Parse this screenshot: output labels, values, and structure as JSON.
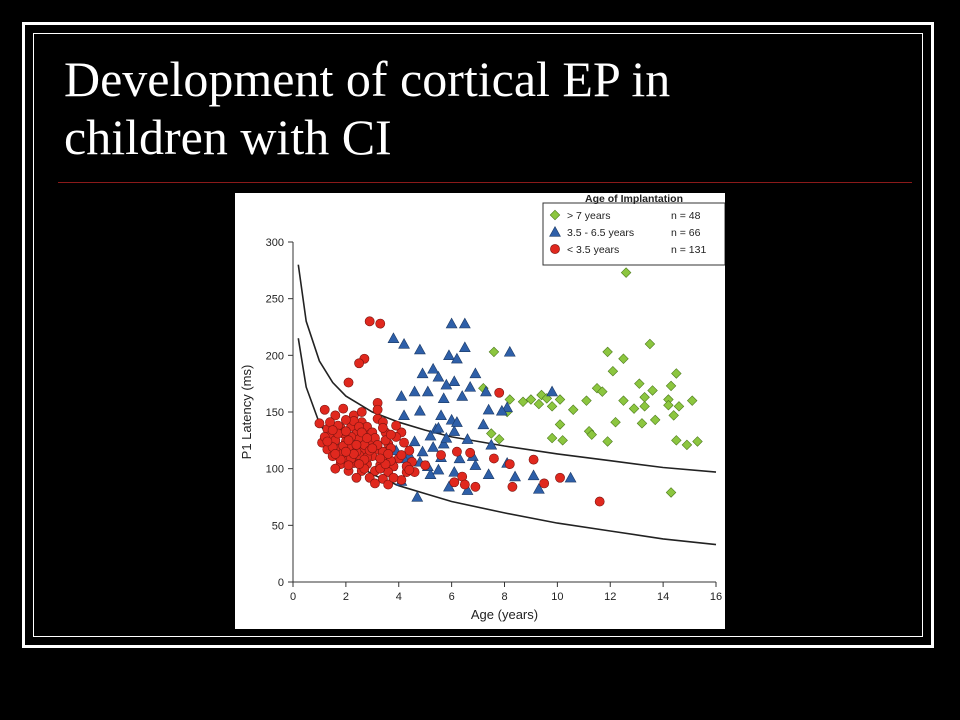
{
  "slide": {
    "title_line1": "Development of cortical EP in",
    "title_line2": "children with CI"
  },
  "chart_data": {
    "type": "scatter",
    "title": "",
    "xlabel": "Age (years)",
    "ylabel": "P1 Latency (ms)",
    "xlim": [
      0,
      16
    ],
    "ylim": [
      0,
      300
    ],
    "xticks": [
      0,
      2,
      4,
      6,
      8,
      10,
      12,
      14,
      16
    ],
    "yticks": [
      0,
      50,
      100,
      150,
      200,
      250,
      300
    ],
    "grid": false,
    "legend": {
      "title": "Age of Implantation",
      "placement": "top-right"
    },
    "colors": {
      "green": "#8cc63f",
      "blue": "#2e5fa8",
      "red": "#e0281e"
    },
    "series": [
      {
        "name": "> 7 years",
        "n": "n = 48",
        "marker": "diamond",
        "color": "#8cc63f",
        "points": [
          [
            12.6,
            273
          ],
          [
            13.5,
            210
          ],
          [
            7.6,
            203
          ],
          [
            11.9,
            203
          ],
          [
            12.5,
            197
          ],
          [
            12.1,
            186
          ],
          [
            14.5,
            184
          ],
          [
            13.1,
            175
          ],
          [
            14.3,
            173
          ],
          [
            7.2,
            171
          ],
          [
            11.5,
            171
          ],
          [
            11.7,
            168
          ],
          [
            13.6,
            169
          ],
          [
            9.4,
            165
          ],
          [
            8.2,
            161
          ],
          [
            8.7,
            159
          ],
          [
            9,
            161
          ],
          [
            9.6,
            162
          ],
          [
            10.1,
            161
          ],
          [
            11.1,
            160
          ],
          [
            12.5,
            160
          ],
          [
            13.3,
            163
          ],
          [
            14.2,
            161
          ],
          [
            9.3,
            157
          ],
          [
            9.8,
            155
          ],
          [
            13.3,
            155
          ],
          [
            14.2,
            156
          ],
          [
            14.6,
            155
          ],
          [
            15.1,
            160
          ],
          [
            8.1,
            150
          ],
          [
            12.9,
            153
          ],
          [
            14.4,
            147
          ],
          [
            12.2,
            141
          ],
          [
            13.7,
            143
          ],
          [
            13.2,
            140
          ],
          [
            10.1,
            139
          ],
          [
            11.2,
            133
          ],
          [
            7.5,
            131
          ],
          [
            9.8,
            127
          ],
          [
            10.2,
            125
          ],
          [
            11.9,
            124
          ],
          [
            14.5,
            125
          ],
          [
            14.9,
            121
          ],
          [
            15.3,
            124
          ],
          [
            11.3,
            130
          ],
          [
            7.8,
            126
          ],
          [
            14.3,
            79
          ],
          [
            10.6,
            152
          ]
        ]
      },
      {
        "name": "3.5 - 6.5 years",
        "n": "n = 66",
        "marker": "triangle",
        "color": "#2e5fa8",
        "points": [
          [
            6,
            228
          ],
          [
            6.5,
            228
          ],
          [
            3.8,
            215
          ],
          [
            4.2,
            210
          ],
          [
            4.8,
            205
          ],
          [
            6.5,
            207
          ],
          [
            8.2,
            203
          ],
          [
            5.9,
            200
          ],
          [
            6.2,
            197
          ],
          [
            5.3,
            188
          ],
          [
            4.9,
            184
          ],
          [
            6.9,
            184
          ],
          [
            5.5,
            181
          ],
          [
            6.1,
            177
          ],
          [
            5.8,
            174
          ],
          [
            6.7,
            172
          ],
          [
            5.1,
            168
          ],
          [
            7.3,
            168
          ],
          [
            4.6,
            168
          ],
          [
            9.8,
            168
          ],
          [
            4.1,
            164
          ],
          [
            5.7,
            162
          ],
          [
            6.4,
            164
          ],
          [
            8.1,
            154
          ],
          [
            7.4,
            152
          ],
          [
            7.9,
            151
          ],
          [
            4.8,
            151
          ],
          [
            5.6,
            147
          ],
          [
            4.2,
            147
          ],
          [
            6,
            143
          ],
          [
            7.2,
            139
          ],
          [
            5.4,
            135
          ],
          [
            6.1,
            133
          ],
          [
            5.2,
            129
          ],
          [
            6.6,
            126
          ],
          [
            4.6,
            124
          ],
          [
            5.7,
            122
          ],
          [
            5.3,
            119
          ],
          [
            3.9,
            116
          ],
          [
            4.4,
            112
          ],
          [
            5.6,
            110
          ],
          [
            6.3,
            109
          ],
          [
            4.8,
            106
          ],
          [
            3.7,
            102
          ],
          [
            5.5,
            99
          ],
          [
            6.1,
            97
          ],
          [
            7.4,
            95
          ],
          [
            8.4,
            93
          ],
          [
            9.1,
            94
          ],
          [
            10.5,
            92
          ],
          [
            5.2,
            95
          ],
          [
            4.1,
            89
          ],
          [
            5.9,
            84
          ],
          [
            6.6,
            81
          ],
          [
            8.1,
            105
          ],
          [
            9.3,
            82
          ],
          [
            4.7,
            75
          ],
          [
            6.8,
            111
          ],
          [
            7.5,
            121
          ],
          [
            5.8,
            127
          ],
          [
            4.2,
            109
          ],
          [
            6.2,
            141
          ],
          [
            5.5,
            136
          ],
          [
            4.9,
            115
          ],
          [
            6.9,
            103
          ],
          [
            5.1,
            102
          ]
        ]
      },
      {
        "name": "< 3.5 years",
        "n": "n = 131",
        "marker": "circle",
        "color": "#e0281e",
        "points": [
          [
            2.9,
            230
          ],
          [
            3.3,
            228
          ],
          [
            2.7,
            197
          ],
          [
            2.5,
            193
          ],
          [
            2.1,
            176
          ],
          [
            7.8,
            167
          ],
          [
            3.2,
            158
          ],
          [
            1.2,
            152
          ],
          [
            1.9,
            153
          ],
          [
            1.6,
            147
          ],
          [
            2.3,
            147
          ],
          [
            1,
            140
          ],
          [
            2.6,
            141
          ],
          [
            3.2,
            144
          ],
          [
            1.3,
            135
          ],
          [
            1.8,
            136
          ],
          [
            2.2,
            137
          ],
          [
            2.8,
            137
          ],
          [
            3.4,
            141
          ],
          [
            1.4,
            129
          ],
          [
            1.9,
            131
          ],
          [
            2.4,
            131
          ],
          [
            2.9,
            130
          ],
          [
            3.5,
            132
          ],
          [
            4.1,
            132
          ],
          [
            1.1,
            123
          ],
          [
            1.6,
            125
          ],
          [
            2,
            124
          ],
          [
            2.5,
            126
          ],
          [
            3,
            124
          ],
          [
            3.6,
            122
          ],
          [
            1.3,
            117
          ],
          [
            1.8,
            118
          ],
          [
            2.2,
            119
          ],
          [
            2.7,
            117
          ],
          [
            3.2,
            117
          ],
          [
            3.7,
            118
          ],
          [
            4.4,
            116
          ],
          [
            1.5,
            111
          ],
          [
            2,
            110
          ],
          [
            2.5,
            112
          ],
          [
            3,
            111
          ],
          [
            3.5,
            110
          ],
          [
            4,
            109
          ],
          [
            1.8,
            104
          ],
          [
            2.3,
            105
          ],
          [
            2.8,
            104
          ],
          [
            3.3,
            103
          ],
          [
            3.8,
            102
          ],
          [
            2.1,
            98
          ],
          [
            2.6,
            98
          ],
          [
            3.1,
            98
          ],
          [
            3.6,
            97
          ],
          [
            4.3,
            97
          ],
          [
            2.4,
            92
          ],
          [
            2.9,
            92
          ],
          [
            3.4,
            91
          ],
          [
            4.1,
            90
          ],
          [
            3.1,
            87
          ],
          [
            3.6,
            86
          ],
          [
            4.6,
            97
          ],
          [
            5,
            103
          ],
          [
            5.6,
            112
          ],
          [
            6.2,
            115
          ],
          [
            6.7,
            114
          ],
          [
            6.4,
            93
          ],
          [
            6.1,
            88
          ],
          [
            6.5,
            86
          ],
          [
            6.9,
            84
          ],
          [
            8.3,
            84
          ],
          [
            9.5,
            87
          ],
          [
            9.1,
            108
          ],
          [
            7.6,
            109
          ],
          [
            8.2,
            104
          ],
          [
            10.1,
            92
          ],
          [
            11.6,
            71
          ],
          [
            1.7,
            138
          ],
          [
            2.3,
            142
          ],
          [
            3.9,
            138
          ],
          [
            1.5,
            119
          ],
          [
            2.7,
            121
          ],
          [
            1.9,
            114
          ],
          [
            2.4,
            115
          ],
          [
            3.4,
            115
          ],
          [
            2.2,
            109
          ],
          [
            3.7,
            107
          ],
          [
            4.2,
            123
          ],
          [
            1.2,
            128
          ],
          [
            3,
            132
          ],
          [
            2,
            143
          ],
          [
            2.6,
            150
          ],
          [
            1.7,
            131
          ],
          [
            2.8,
            110
          ],
          [
            3.3,
            100
          ],
          [
            1.6,
            100
          ],
          [
            2.1,
            103
          ],
          [
            3.5,
            125
          ],
          [
            4.5,
            106
          ],
          [
            3.2,
            152
          ],
          [
            2.5,
            137
          ],
          [
            1.9,
            120
          ],
          [
            3.8,
            92
          ],
          [
            2.7,
            100
          ],
          [
            3.1,
            127
          ],
          [
            1.4,
            141
          ],
          [
            2.2,
            128
          ],
          [
            4.3,
            102
          ],
          [
            3.6,
            113
          ],
          [
            2.4,
            121
          ],
          [
            2.9,
            116
          ],
          [
            1.8,
            108
          ],
          [
            3.4,
            136
          ],
          [
            2,
            133
          ],
          [
            2.7,
            108
          ],
          [
            3.9,
            128
          ],
          [
            4.1,
            112
          ],
          [
            1.3,
            124
          ],
          [
            2.3,
            113
          ],
          [
            3.2,
            121
          ],
          [
            1.6,
            113
          ],
          [
            2.5,
            104
          ],
          [
            3,
            118
          ],
          [
            3.7,
            130
          ],
          [
            2.1,
            125
          ],
          [
            2.6,
            132
          ],
          [
            1.5,
            134
          ],
          [
            3.5,
            104
          ],
          [
            4.4,
            99
          ],
          [
            2.8,
            127
          ],
          [
            2,
            115
          ],
          [
            3.3,
            109
          ]
        ]
      }
    ],
    "curves": [
      {
        "name": "upper bound",
        "points": [
          [
            0.2,
            280
          ],
          [
            0.5,
            230
          ],
          [
            1,
            195
          ],
          [
            1.5,
            176
          ],
          [
            2,
            164
          ],
          [
            3,
            150
          ],
          [
            4,
            141
          ],
          [
            5,
            134
          ],
          [
            6,
            128
          ],
          [
            8,
            120
          ],
          [
            10,
            113
          ],
          [
            12,
            107
          ],
          [
            14,
            101
          ],
          [
            16,
            97
          ]
        ]
      },
      {
        "name": "lower bound",
        "points": [
          [
            0.2,
            215
          ],
          [
            0.5,
            172
          ],
          [
            1,
            140
          ],
          [
            1.5,
            122
          ],
          [
            2,
            110
          ],
          [
            3,
            95
          ],
          [
            4,
            85
          ],
          [
            5,
            78
          ],
          [
            6,
            71
          ],
          [
            8,
            61
          ],
          [
            10,
            52
          ],
          [
            12,
            45
          ],
          [
            14,
            38
          ],
          [
            16,
            33
          ]
        ]
      }
    ]
  }
}
